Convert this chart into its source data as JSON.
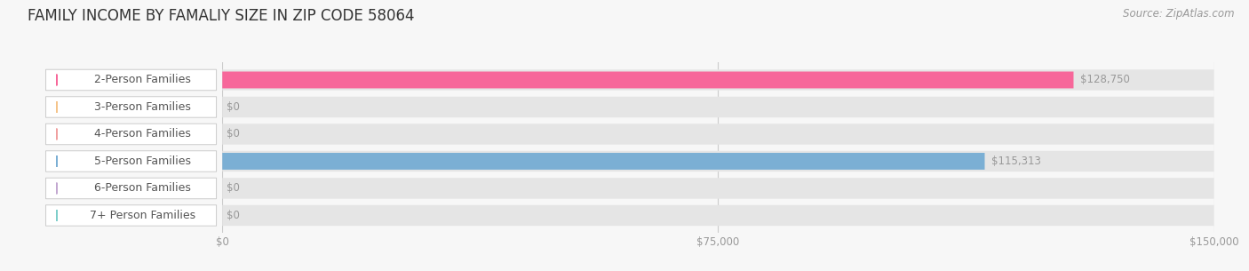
{
  "title": "FAMILY INCOME BY FAMALIY SIZE IN ZIP CODE 58064",
  "source": "Source: ZipAtlas.com",
  "categories": [
    "2-Person Families",
    "3-Person Families",
    "4-Person Families",
    "5-Person Families",
    "6-Person Families",
    "7+ Person Families"
  ],
  "values": [
    128750,
    0,
    0,
    115313,
    0,
    0
  ],
  "bar_colors": [
    "#F7679A",
    "#F5C48A",
    "#F0A0A0",
    "#7BAFD4",
    "#C3A8D1",
    "#7ECECA"
  ],
  "value_labels": [
    "$128,750",
    "$0",
    "$0",
    "$115,313",
    "$0",
    "$0"
  ],
  "xlim": [
    0,
    150000
  ],
  "xticks": [
    0,
    75000,
    150000
  ],
  "xticklabels": [
    "$0",
    "$75,000",
    "$150,000"
  ],
  "background_color": "#f7f7f7",
  "bar_bg_color": "#e5e5e5",
  "title_fontsize": 12,
  "source_fontsize": 8.5,
  "label_fontsize": 9,
  "value_fontsize": 8.5
}
